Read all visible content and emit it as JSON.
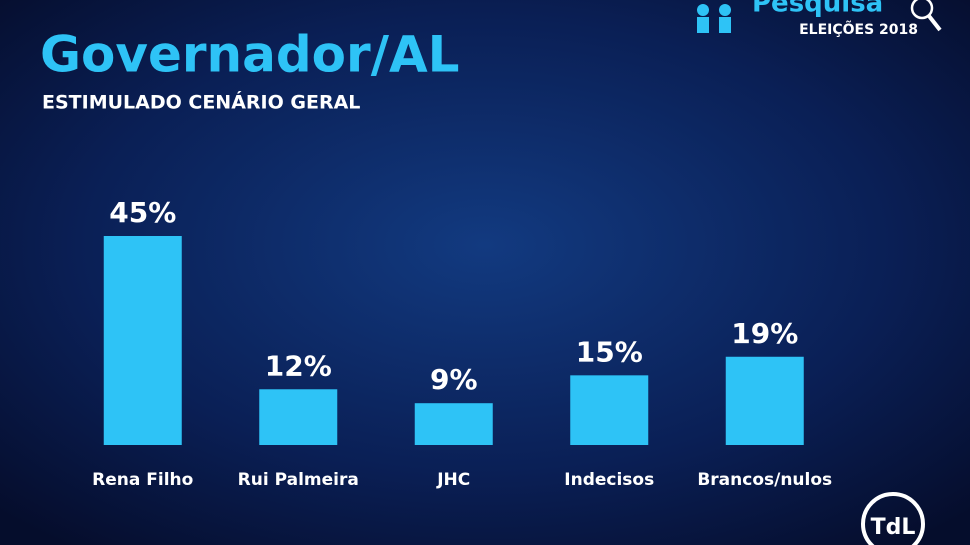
{
  "chart_data": {
    "type": "bar",
    "title": "Governador/AL",
    "subtitle": "ESTIMULADO CENÁRIO GERAL",
    "categories": [
      "Rena Filho",
      "Rui Palmeira",
      "JHC",
      "Indecisos",
      "Brancos/nulos"
    ],
    "values": [
      45,
      12,
      9,
      15,
      19
    ],
    "value_labels": [
      "45%",
      "12%",
      "9%",
      "15%",
      "19%"
    ],
    "color": "#2ec3f6",
    "logo_text": "Pesquisa",
    "logo_subtext": "ELEIÇÕES 2018",
    "brand": "TdL"
  }
}
